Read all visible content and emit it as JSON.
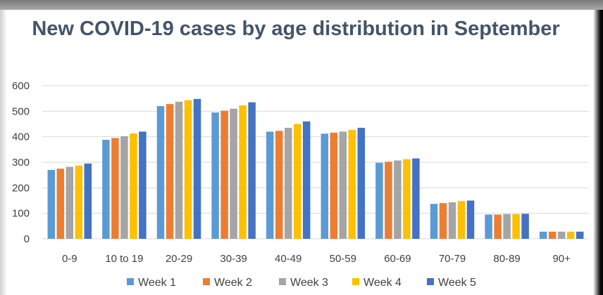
{
  "chart_data": {
    "type": "bar",
    "title": "New COVID-19 cases by age distribution in September",
    "xlabel": "",
    "ylabel": "",
    "ylim": [
      0,
      600
    ],
    "yticks": [
      0,
      100,
      200,
      300,
      400,
      500,
      600
    ],
    "grid": true,
    "legend": "bottom",
    "categories": [
      "0-9",
      "10 to 19",
      "20-29",
      "30-39",
      "40-49",
      "50-59",
      "60-69",
      "70-79",
      "80-89",
      "90+"
    ],
    "series": [
      {
        "name": "Week 1",
        "color": "#5b9bd5",
        "values": [
          270,
          388,
          520,
          495,
          420,
          412,
          298,
          137,
          95,
          28
        ]
      },
      {
        "name": "Week 2",
        "color": "#ed7d31",
        "values": [
          275,
          395,
          528,
          502,
          423,
          416,
          302,
          140,
          95,
          28
        ]
      },
      {
        "name": "Week 3",
        "color": "#a5a5a5",
        "values": [
          282,
          402,
          537,
          510,
          435,
          420,
          307,
          143,
          97,
          28
        ]
      },
      {
        "name": "Week 4",
        "color": "#ffc000",
        "values": [
          287,
          413,
          543,
          523,
          450,
          427,
          312,
          148,
          97,
          28
        ]
      },
      {
        "name": "Week 5",
        "color": "#4472c4",
        "values": [
          295,
          420,
          548,
          535,
          460,
          435,
          315,
          150,
          98,
          28
        ]
      }
    ]
  }
}
